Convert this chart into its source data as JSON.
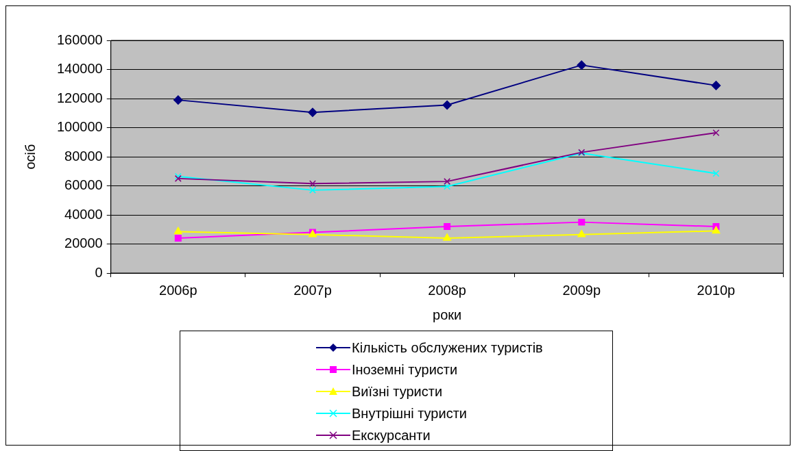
{
  "chart_data": {
    "type": "line",
    "xlabel": "роки",
    "ylabel": "осіб",
    "categories": [
      "2006р",
      "2007р",
      "2008р",
      "2009р",
      "2010р"
    ],
    "ylim": [
      0,
      160000
    ],
    "yticks": [
      0,
      20000,
      40000,
      60000,
      80000,
      100000,
      120000,
      140000,
      160000
    ],
    "grid": "y",
    "legend": "bottom",
    "line_style": "solid",
    "series": [
      {
        "name": "Кількість обслужених туристів",
        "color": "#000080",
        "marker": "diamond",
        "values": [
          119000,
          110500,
          115500,
          143000,
          129000
        ]
      },
      {
        "name": "Іноземні туристи",
        "color": "#ff00ff",
        "marker": "square",
        "values": [
          24000,
          28000,
          32000,
          35000,
          32000
        ]
      },
      {
        "name": "Виїзні туристи",
        "color": "#ffff00",
        "marker": "triangle",
        "values": [
          28500,
          26500,
          24000,
          26500,
          29000
        ]
      },
      {
        "name": "Внутрішні туристи",
        "color": "#00ffff",
        "marker": "cross",
        "values": [
          66500,
          57000,
          59500,
          82500,
          68500
        ]
      },
      {
        "name": "Екскурсанти",
        "color": "#800080",
        "marker": "cross",
        "values": [
          65000,
          61500,
          63000,
          83000,
          96500
        ]
      }
    ]
  }
}
